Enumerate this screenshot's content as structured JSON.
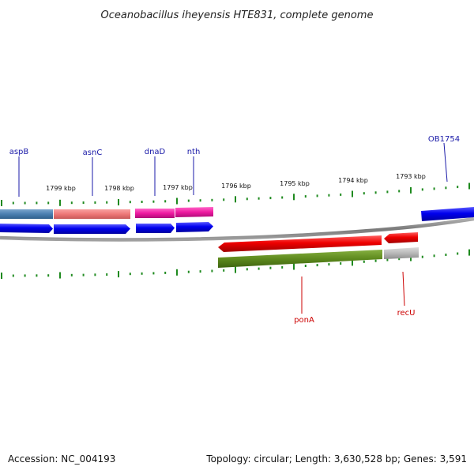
{
  "title": "Oceanobacillus iheyensis HTE831, complete genome",
  "footer": {
    "accession": "Accession: NC_004193",
    "topology": "Topology: circular; Length: 3,630,528 bp; Genes: 3,591"
  },
  "colors": {
    "backbone": "#8a8a8a",
    "tick": "#1f8a1f",
    "cds_forward": "#0000ee",
    "cds_reverse": "#ee0000",
    "feature_steelblue": "#4a7fb0",
    "feature_salmon": "#ee7878",
    "feature_magenta": "#ee1aa0",
    "feature_olive": "#5e8a1e",
    "feature_gray": "#b8b8b8",
    "label_top": "#1a1aa8",
    "label_bottom": "#cc0000"
  },
  "scale_labels": [
    "1799 kbp",
    "1798 kbp",
    "1797 kbp",
    "1796 kbp",
    "1795 kbp",
    "1794 kbp",
    "1793 kbp"
  ],
  "genes_top": [
    "aspB",
    "asnC",
    "dnaD",
    "nth",
    "OB1754"
  ],
  "genes_bottom": [
    "ponA",
    "recU"
  ]
}
